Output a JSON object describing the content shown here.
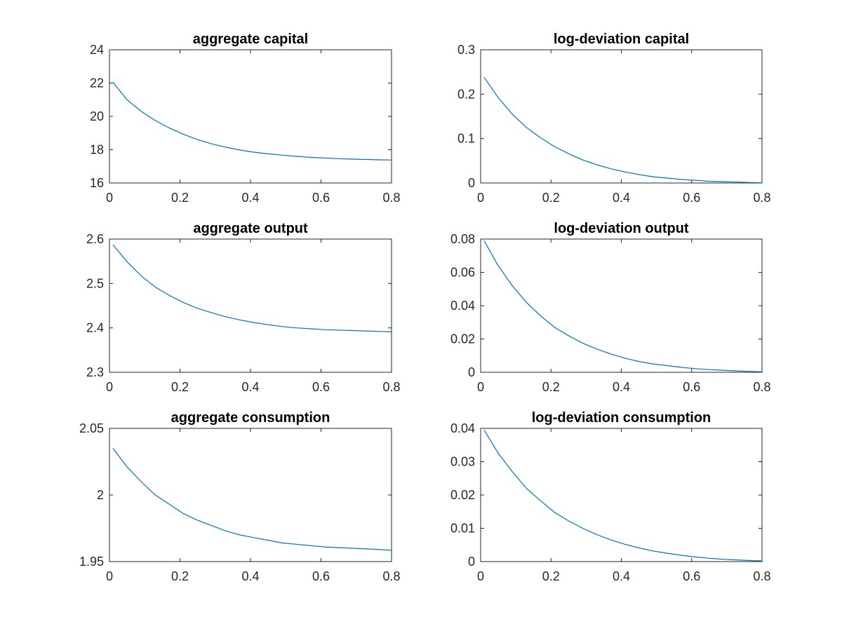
{
  "chart_data": [
    {
      "type": "line",
      "title": "aggregate capital",
      "xlim": [
        0,
        0.8
      ],
      "ylim": [
        16,
        24
      ],
      "xticks": [
        "0",
        "0.2",
        "0.4",
        "0.6",
        "0.8"
      ],
      "yticks": [
        "16",
        "18",
        "20",
        "22",
        "24"
      ],
      "xtick_values": [
        0,
        0.2,
        0.4,
        0.6,
        0.8
      ],
      "ytick_values": [
        16,
        18,
        20,
        22,
        24
      ],
      "grid": false,
      "series": [
        {
          "color": "#0072BD",
          "x": [
            0.01,
            0.05,
            0.09,
            0.13,
            0.17,
            0.21,
            0.25,
            0.29,
            0.33,
            0.37,
            0.41,
            0.45,
            0.49,
            0.53,
            0.57,
            0.61,
            0.65,
            0.69,
            0.73,
            0.77,
            0.8
          ],
          "y": [
            22.05,
            21.0,
            20.3,
            19.75,
            19.3,
            18.92,
            18.6,
            18.35,
            18.15,
            17.98,
            17.85,
            17.75,
            17.67,
            17.6,
            17.54,
            17.5,
            17.46,
            17.43,
            17.41,
            17.39,
            17.38
          ]
        }
      ]
    },
    {
      "type": "line",
      "title": "log-deviation capital",
      "xlim": [
        0,
        0.8
      ],
      "ylim": [
        0,
        0.3
      ],
      "xticks": [
        "0",
        "0.2",
        "0.4",
        "0.6",
        "0.8"
      ],
      "yticks": [
        "0",
        "0.1",
        "0.2",
        "0.3"
      ],
      "xtick_values": [
        0,
        0.2,
        0.4,
        0.6,
        0.8
      ],
      "ytick_values": [
        0,
        0.1,
        0.2,
        0.3
      ],
      "grid": false,
      "series": [
        {
          "color": "#0072BD",
          "x": [
            0.01,
            0.05,
            0.09,
            0.13,
            0.17,
            0.21,
            0.25,
            0.29,
            0.33,
            0.37,
            0.41,
            0.45,
            0.49,
            0.53,
            0.57,
            0.61,
            0.65,
            0.69,
            0.73,
            0.77,
            0.8
          ],
          "y": [
            0.238,
            0.192,
            0.155,
            0.125,
            0.102,
            0.082,
            0.066,
            0.052,
            0.041,
            0.032,
            0.025,
            0.019,
            0.014,
            0.011,
            0.008,
            0.006,
            0.004,
            0.003,
            0.002,
            0.001,
            0.0005
          ]
        }
      ]
    },
    {
      "type": "line",
      "title": "aggregate output",
      "xlim": [
        0,
        0.8
      ],
      "ylim": [
        2.3,
        2.6
      ],
      "xticks": [
        "0",
        "0.2",
        "0.4",
        "0.6",
        "0.8"
      ],
      "yticks": [
        "2.3",
        "2.4",
        "2.5",
        "2.6"
      ],
      "xtick_values": [
        0,
        0.2,
        0.4,
        0.6,
        0.8
      ],
      "ytick_values": [
        2.3,
        2.4,
        2.5,
        2.6
      ],
      "grid": false,
      "series": [
        {
          "color": "#0072BD",
          "x": [
            0.01,
            0.05,
            0.09,
            0.13,
            0.17,
            0.21,
            0.25,
            0.29,
            0.33,
            0.37,
            0.41,
            0.45,
            0.49,
            0.53,
            0.57,
            0.61,
            0.65,
            0.69,
            0.73,
            0.77,
            0.8
          ],
          "y": [
            2.587,
            2.549,
            2.517,
            2.492,
            2.473,
            2.457,
            2.444,
            2.434,
            2.425,
            2.418,
            2.412,
            2.407,
            2.403,
            2.4,
            2.398,
            2.396,
            2.395,
            2.394,
            2.393,
            2.392,
            2.391
          ]
        }
      ]
    },
    {
      "type": "line",
      "title": "log-deviation output",
      "xlim": [
        0,
        0.8
      ],
      "ylim": [
        0,
        0.08
      ],
      "xticks": [
        "0",
        "0.2",
        "0.4",
        "0.6",
        "0.8"
      ],
      "yticks": [
        "0",
        "0.02",
        "0.04",
        "0.06",
        "0.08"
      ],
      "xtick_values": [
        0,
        0.2,
        0.4,
        0.6,
        0.8
      ],
      "ytick_values": [
        0,
        0.02,
        0.04,
        0.06,
        0.08
      ],
      "grid": false,
      "series": [
        {
          "color": "#0072BD",
          "x": [
            0.01,
            0.05,
            0.09,
            0.13,
            0.17,
            0.21,
            0.25,
            0.29,
            0.33,
            0.37,
            0.41,
            0.45,
            0.49,
            0.53,
            0.57,
            0.61,
            0.65,
            0.69,
            0.73,
            0.77,
            0.8
          ],
          "y": [
            0.079,
            0.064,
            0.052,
            0.042,
            0.034,
            0.027,
            0.022,
            0.0175,
            0.014,
            0.011,
            0.0085,
            0.0065,
            0.005,
            0.004,
            0.003,
            0.0022,
            0.0016,
            0.0012,
            0.0008,
            0.0005,
            0.0003
          ]
        }
      ]
    },
    {
      "type": "line",
      "title": "aggregate consumption",
      "xlim": [
        0,
        0.8
      ],
      "ylim": [
        1.95,
        2.05
      ],
      "xticks": [
        "0",
        "0.2",
        "0.4",
        "0.6",
        "0.8"
      ],
      "yticks": [
        "1.95",
        "2",
        "2.05"
      ],
      "xtick_values": [
        0,
        0.2,
        0.4,
        0.6,
        0.8
      ],
      "ytick_values": [
        1.95,
        2.0,
        2.05
      ],
      "grid": false,
      "series": [
        {
          "color": "#0072BD",
          "x": [
            0.01,
            0.05,
            0.09,
            0.13,
            0.17,
            0.21,
            0.25,
            0.29,
            0.33,
            0.37,
            0.41,
            0.45,
            0.49,
            0.53,
            0.57,
            0.61,
            0.65,
            0.69,
            0.73,
            0.77,
            0.8
          ],
          "y": [
            2.035,
            2.021,
            2.01,
            2.0,
            1.993,
            1.986,
            1.981,
            1.977,
            1.973,
            1.97,
            1.968,
            1.966,
            1.964,
            1.963,
            1.962,
            1.961,
            1.9605,
            1.96,
            1.9595,
            1.959,
            1.9585
          ]
        }
      ]
    },
    {
      "type": "line",
      "title": "log-deviation consumption",
      "xlim": [
        0,
        0.8
      ],
      "ylim": [
        0,
        0.04
      ],
      "xticks": [
        "0",
        "0.2",
        "0.4",
        "0.6",
        "0.8"
      ],
      "yticks": [
        "0",
        "0.01",
        "0.02",
        "0.03",
        "0.04"
      ],
      "xtick_values": [
        0,
        0.2,
        0.4,
        0.6,
        0.8
      ],
      "ytick_values": [
        0,
        0.01,
        0.02,
        0.03,
        0.04
      ],
      "grid": false,
      "series": [
        {
          "color": "#0072BD",
          "x": [
            0.01,
            0.05,
            0.09,
            0.13,
            0.17,
            0.21,
            0.25,
            0.29,
            0.33,
            0.37,
            0.41,
            0.45,
            0.49,
            0.53,
            0.57,
            0.61,
            0.65,
            0.69,
            0.73,
            0.77,
            0.8
          ],
          "y": [
            0.0395,
            0.0325,
            0.027,
            0.022,
            0.0183,
            0.0148,
            0.0122,
            0.01,
            0.0081,
            0.0065,
            0.0052,
            0.0041,
            0.0032,
            0.0025,
            0.0019,
            0.0014,
            0.001,
            0.0007,
            0.0005,
            0.0003,
            0.0002
          ]
        }
      ]
    }
  ]
}
